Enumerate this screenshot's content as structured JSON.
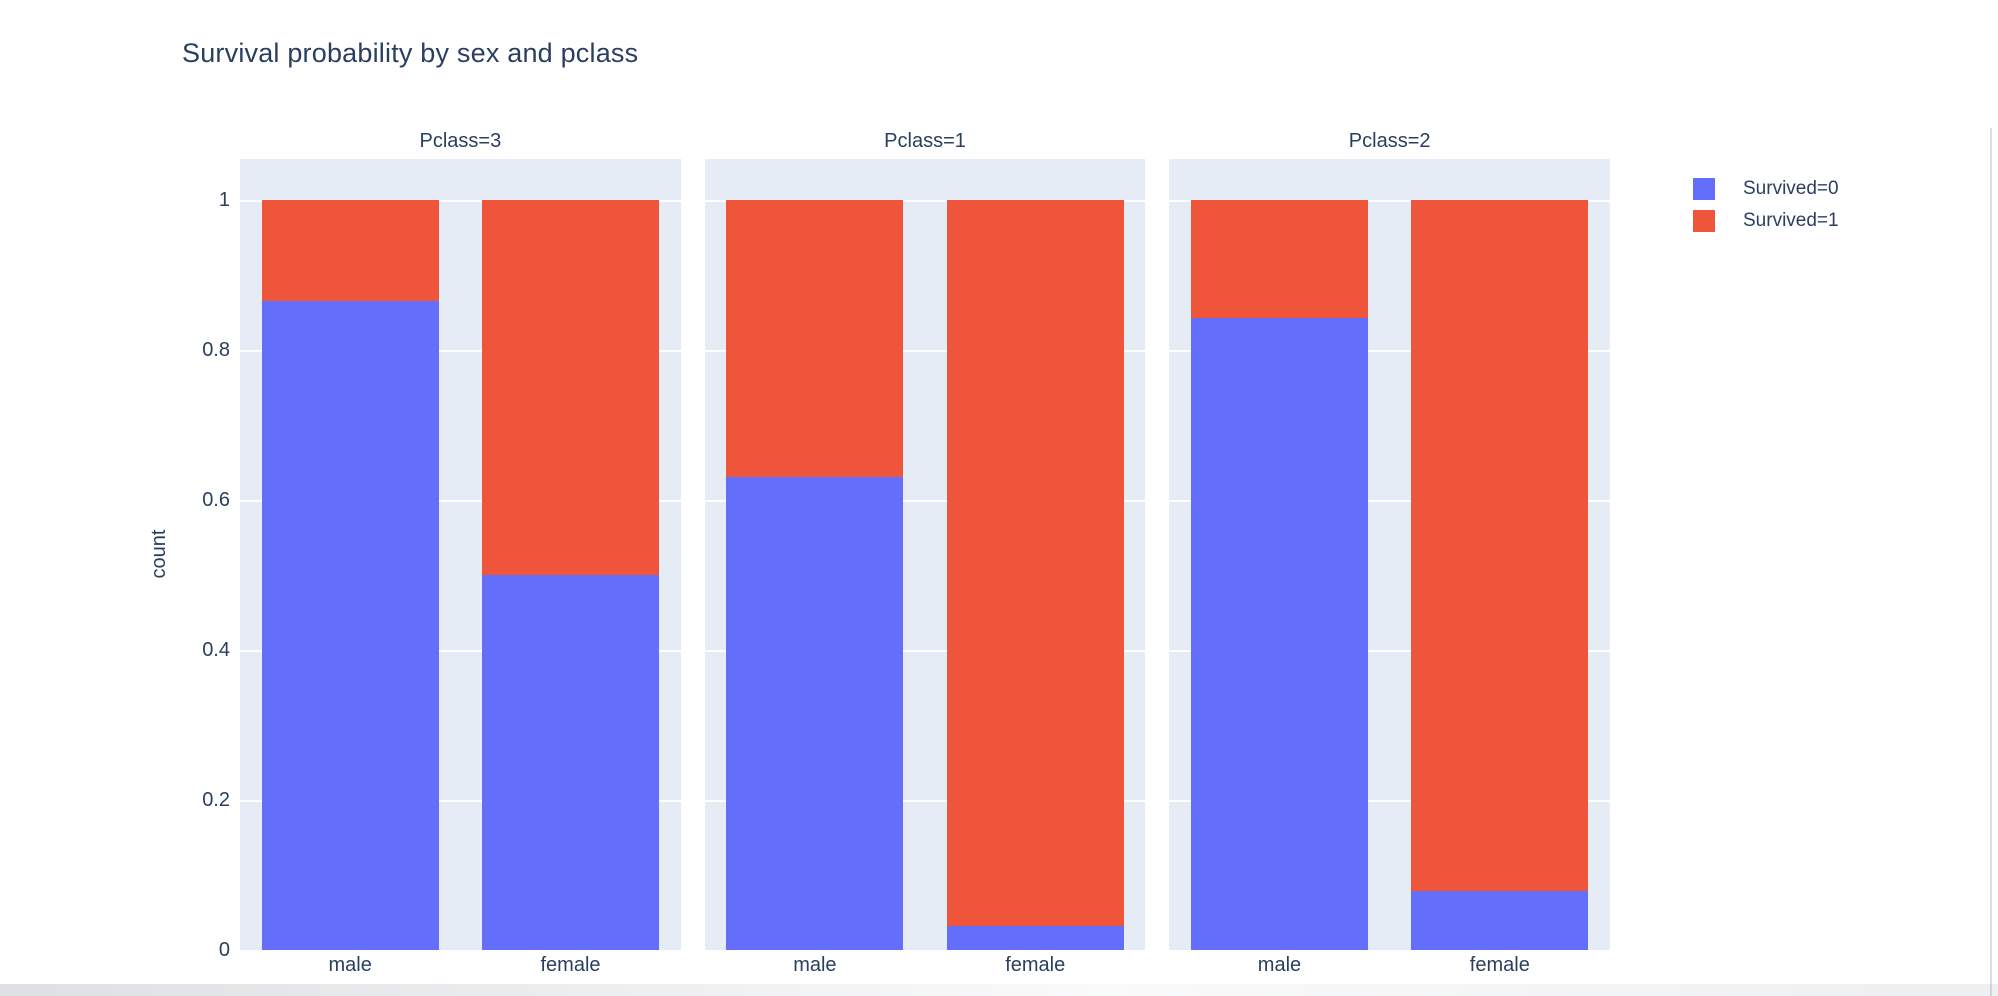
{
  "title": "Survival probability by sex and pclass",
  "yaxis": {
    "title": "count",
    "ticks": [
      "1",
      "0.8",
      "0.6",
      "0.4",
      "0.2",
      "0"
    ],
    "tick_values": [
      1,
      0.8,
      0.6,
      0.4,
      0.2,
      0
    ]
  },
  "legend": {
    "position": "top-right",
    "items": [
      {
        "label": "Survived=0",
        "color": "#636EFA"
      },
      {
        "label": "Survived=1",
        "color": "#EF553B"
      }
    ]
  },
  "colors": {
    "survived_0": "#636EFA",
    "survived_1": "#EF553B",
    "plot_background": "#E5ECF6",
    "gridline": "#FFFFFF",
    "text": "#2A3F5F"
  },
  "chart_data": {
    "type": "bar",
    "barmode": "stacked-normalized",
    "title": "Survival probability by sex and pclass",
    "xlabel": "",
    "ylabel": "count",
    "ylim": [
      0,
      1.055
    ],
    "grid": true,
    "legend_position": "top-right",
    "categories": [
      "male",
      "female"
    ],
    "facets": [
      {
        "title": "Pclass=3",
        "categories": [
          "male",
          "female"
        ],
        "series": [
          {
            "name": "Survived=0",
            "values": [
              0.865,
              0.5
            ]
          },
          {
            "name": "Survived=1",
            "values": [
              0.135,
              0.5
            ]
          }
        ]
      },
      {
        "title": "Pclass=1",
        "categories": [
          "male",
          "female"
        ],
        "series": [
          {
            "name": "Survived=0",
            "values": [
              0.631,
              0.032
            ]
          },
          {
            "name": "Survived=1",
            "values": [
              0.369,
              0.968
            ]
          }
        ]
      },
      {
        "title": "Pclass=2",
        "categories": [
          "male",
          "female"
        ],
        "series": [
          {
            "name": "Survived=0",
            "values": [
              0.843,
              0.079
            ]
          },
          {
            "name": "Survived=1",
            "values": [
              0.157,
              0.921
            ]
          }
        ]
      }
    ]
  }
}
